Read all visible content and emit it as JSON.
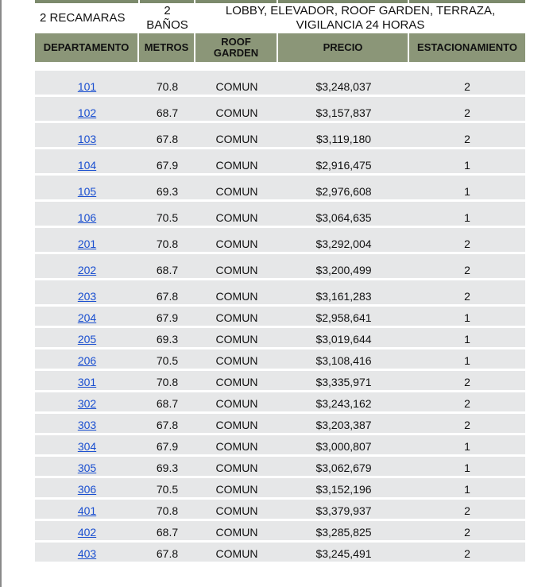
{
  "summary": {
    "recamaras": "2 RECAMARAS",
    "banos_count": "2",
    "banos_label": "BAÑOS",
    "amenities_line1": "LOBBY, ELEVADOR, ROOF GARDEN, TERRAZA,",
    "amenities_line2": "VIGILANCIA 24 HORAS"
  },
  "headers": {
    "departamento": "DEPARTAMENTO",
    "metros": "METROS",
    "roof_line1": "ROOF",
    "roof_line2": "GARDEN",
    "precio": "PRECIO",
    "estacionamiento": "ESTACIONAMIENTO"
  },
  "rows": [
    {
      "depto": "101",
      "metros": "70.8",
      "roof": "COMUN",
      "precio": "$3,248,037",
      "est": "2"
    },
    {
      "depto": "102",
      "metros": "68.7",
      "roof": "COMUN",
      "precio": "$3,157,837",
      "est": "2"
    },
    {
      "depto": "103",
      "metros": "67.8",
      "roof": "COMUN",
      "precio": "$3,119,180",
      "est": "2"
    },
    {
      "depto": "104",
      "metros": "67.9",
      "roof": "COMUN",
      "precio": "$2,916,475",
      "est": "1"
    },
    {
      "depto": "105",
      "metros": "69.3",
      "roof": "COMUN",
      "precio": "$2,976,608",
      "est": "1"
    },
    {
      "depto": "106",
      "metros": "70.5",
      "roof": "COMUN",
      "precio": "$3,064,635",
      "est": "1"
    },
    {
      "depto": "201",
      "metros": "70.8",
      "roof": "COMUN",
      "precio": "$3,292,004",
      "est": "2"
    },
    {
      "depto": "202",
      "metros": "68.7",
      "roof": "COMUN",
      "precio": "$3,200,499",
      "est": "2"
    },
    {
      "depto": "203",
      "metros": "67.8",
      "roof": "COMUN",
      "precio": "$3,161,283",
      "est": "2"
    },
    {
      "depto": "204",
      "metros": "67.9",
      "roof": "COMUN",
      "precio": "$2,958,641",
      "est": "1"
    },
    {
      "depto": "205",
      "metros": "69.3",
      "roof": "COMUN",
      "precio": "$3,019,644",
      "est": "1"
    },
    {
      "depto": "206",
      "metros": "70.5",
      "roof": "COMUN",
      "precio": "$3,108,416",
      "est": "1"
    },
    {
      "depto": "301",
      "metros": "70.8",
      "roof": "COMUN",
      "precio": "$3,335,971",
      "est": "2"
    },
    {
      "depto": "302",
      "metros": "68.7",
      "roof": "COMUN",
      "precio": "$3,243,162",
      "est": "2"
    },
    {
      "depto": "303",
      "metros": "67.8",
      "roof": "COMUN",
      "precio": "$3,203,387",
      "est": "2"
    },
    {
      "depto": "304",
      "metros": "67.9",
      "roof": "COMUN",
      "precio": "$3,000,807",
      "est": "1"
    },
    {
      "depto": "305",
      "metros": "69.3",
      "roof": "COMUN",
      "precio": "$3,062,679",
      "est": "1"
    },
    {
      "depto": "306",
      "metros": "70.5",
      "roof": "COMUN",
      "precio": "$3,152,196",
      "est": "1"
    },
    {
      "depto": "401",
      "metros": "70.8",
      "roof": "COMUN",
      "precio": "$3,379,937",
      "est": "2"
    },
    {
      "depto": "402",
      "metros": "68.7",
      "roof": "COMUN",
      "precio": "$3,285,825",
      "est": "2"
    },
    {
      "depto": "403",
      "metros": "67.8",
      "roof": "COMUN",
      "precio": "$3,245,491",
      "est": "2"
    }
  ],
  "colors": {
    "header_bg": "#8b9678",
    "row_bg": "#e6e7e8",
    "link": "#1a4fd0"
  }
}
